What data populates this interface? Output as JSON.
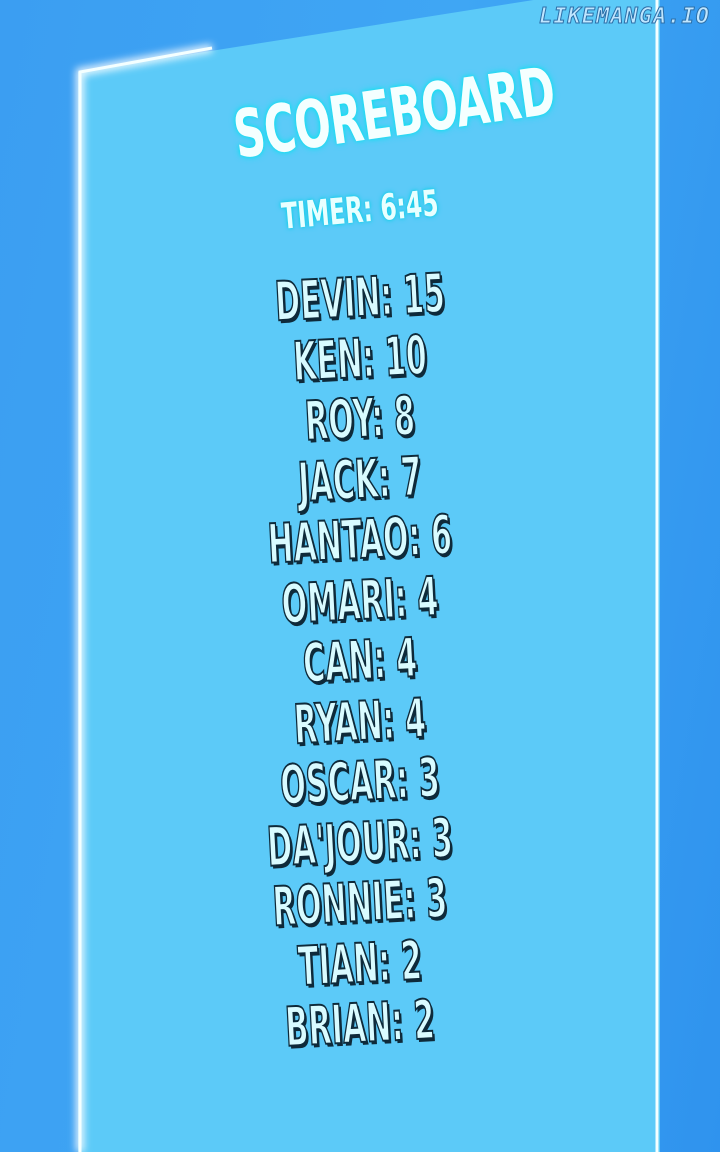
{
  "watermark": "LIKEMANGA.IO",
  "scoreboard": {
    "title": "SCOREBOARD",
    "timer": "TIMER: 6:45",
    "entries": [
      "DEVIN: 15",
      "KEN: 10",
      "ROY: 8",
      "JACK: 7",
      "HANTAO: 6",
      "OMARI: 4",
      "CAN: 4",
      "RYAN: 4",
      "OSCAR: 3",
      "DA'JOUR: 3",
      "RONNIE: 3",
      "TIAN: 2",
      "BRIAN: 2"
    ]
  },
  "colors": {
    "background": "#3b9ef2",
    "panel": "#5ccaf8",
    "glow": "#10e0f0"
  }
}
